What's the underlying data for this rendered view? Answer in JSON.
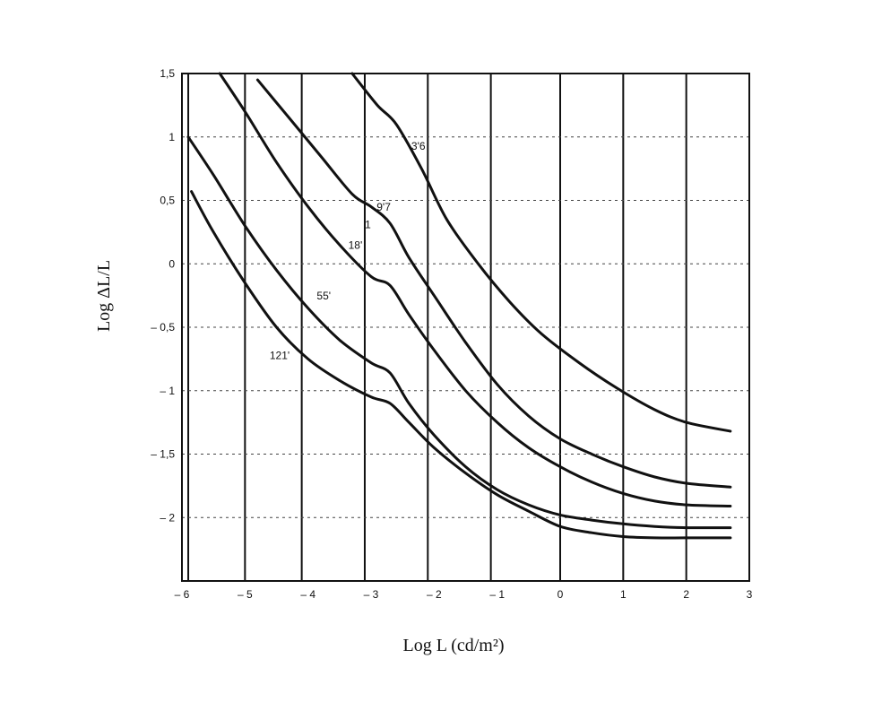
{
  "chart_data": {
    "type": "line",
    "title": "",
    "xlabel": "Log L (cd/m²)",
    "ylabel": "Log ΔL/L",
    "xlim": [
      -6,
      3
    ],
    "ylim": [
      -2.5,
      1.5
    ],
    "x_ticks": [
      -6,
      -5,
      -4,
      -3,
      -2,
      -1,
      0,
      1,
      2,
      3
    ],
    "x_tick_labels": [
      "– 6",
      "– 5",
      "– 4",
      "– 3",
      "– 2",
      "– 1",
      "0",
      "1",
      "2",
      "3"
    ],
    "y_ticks": [
      1.5,
      1,
      0.5,
      0,
      -0.5,
      -1,
      -1.5,
      -2
    ],
    "y_tick_labels": [
      "1,5",
      "1",
      "0,5",
      "0",
      "– 0,5",
      "– 1",
      "– 1,5",
      "– 2"
    ],
    "grid": true,
    "vertical_grid": [
      -5.9,
      -5,
      -4.1,
      -3.1,
      -2.1,
      -1.1,
      0,
      1,
      2
    ],
    "horizontal_grid": [
      1.5,
      1,
      0.5,
      0,
      -0.5,
      -1,
      -1.5,
      -2
    ],
    "series": [
      {
        "name": "3'6",
        "x": [
          -3.3,
          -2.9,
          -2.6,
          -2.2,
          -1.8,
          -1.3,
          -0.8,
          -0.3,
          0.3,
          0.9,
          1.5,
          2.0,
          2.7
        ],
        "y": [
          1.5,
          1.25,
          1.1,
          0.75,
          0.35,
          0.0,
          -0.3,
          -0.55,
          -0.78,
          -0.98,
          -1.15,
          -1.25,
          -1.32
        ]
      },
      {
        "name": "9'7",
        "x": [
          -4.8,
          -4.3,
          -3.8,
          -3.3,
          -3.0,
          -2.7,
          -2.4,
          -2.0,
          -1.5,
          -1.0,
          -0.5,
          0,
          0.5,
          1.0,
          1.5,
          2.0,
          2.7
        ],
        "y": [
          1.45,
          1.15,
          0.85,
          0.55,
          0.45,
          0.32,
          0.05,
          -0.25,
          -0.62,
          -0.95,
          -1.2,
          -1.38,
          -1.5,
          -1.6,
          -1.68,
          -1.73,
          -1.76
        ]
      },
      {
        "name": "18'",
        "x": [
          -5.4,
          -5.0,
          -4.5,
          -4.0,
          -3.5,
          -3.0,
          -2.7,
          -2.4,
          -2.0,
          -1.5,
          -1.0,
          -0.5,
          0,
          0.5,
          1.0,
          1.5,
          2.0,
          2.7
        ],
        "y": [
          1.5,
          1.2,
          0.8,
          0.45,
          0.15,
          -0.1,
          -0.17,
          -0.4,
          -0.68,
          -1.0,
          -1.25,
          -1.45,
          -1.6,
          -1.72,
          -1.81,
          -1.87,
          -1.9,
          -1.91
        ]
      },
      {
        "name": "55'",
        "x": [
          -5.9,
          -5.5,
          -5.0,
          -4.5,
          -4.0,
          -3.5,
          -3.0,
          -2.7,
          -2.4,
          -2.0,
          -1.5,
          -1.0,
          -0.5,
          0,
          0.5,
          1.0,
          1.5,
          2.0,
          2.7
        ],
        "y": [
          1.0,
          0.7,
          0.3,
          -0.05,
          -0.35,
          -0.6,
          -0.78,
          -0.86,
          -1.1,
          -1.35,
          -1.6,
          -1.78,
          -1.9,
          -1.98,
          -2.02,
          -2.05,
          -2.07,
          -2.08,
          -2.08
        ]
      },
      {
        "name": "121'",
        "x": [
          -5.85,
          -5.5,
          -5.0,
          -4.5,
          -4.0,
          -3.5,
          -3.0,
          -2.7,
          -2.4,
          -2.0,
          -1.5,
          -1.0,
          -0.5,
          0,
          0.5,
          1.0,
          1.5,
          2.0,
          2.7
        ],
        "y": [
          0.57,
          0.25,
          -0.15,
          -0.5,
          -0.75,
          -0.92,
          -1.05,
          -1.1,
          -1.25,
          -1.45,
          -1.65,
          -1.82,
          -1.95,
          -2.07,
          -2.12,
          -2.15,
          -2.16,
          -2.16,
          -2.16
        ]
      }
    ],
    "annotations": [
      {
        "text": "3'6",
        "x": -2.25,
        "y": 0.9
      },
      {
        "text": "9'7",
        "x": -2.8,
        "y": 0.42
      },
      {
        "text": "1",
        "x": -3.05,
        "y": 0.28
      },
      {
        "text": "18'",
        "x": -3.25,
        "y": 0.12
      },
      {
        "text": "55'",
        "x": -3.75,
        "y": -0.28
      },
      {
        "text": "121'",
        "x": -4.45,
        "y": -0.75
      }
    ]
  }
}
